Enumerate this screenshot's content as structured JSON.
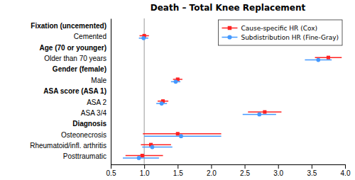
{
  "chart_data": {
    "type": "forest",
    "title": "Death – Total Knee Replacement",
    "orientation": "horizontal",
    "categories": [
      "Fixation (uncemented)",
      "Cemented",
      "Age (70 or younger)",
      "Older than 70 years",
      "Gender (female)",
      "Male",
      "ASA score (ASA 1)",
      "ASA 2",
      "ASA 3/4",
      "Diagnosis",
      "Osteonecrosis",
      "Rheumatoid/infl. arthritis",
      "Posttraumatic"
    ],
    "series": [
      {
        "name": "Cause-specific HR (Cox)",
        "color": "#FF2222",
        "marker": "square",
        "line_style": "solid",
        "values": [
          null,
          1.0,
          null,
          3.75,
          null,
          1.5,
          null,
          1.28,
          2.8,
          null,
          1.5,
          1.1,
          0.97
        ],
        "lo": [
          null,
          0.93,
          null,
          3.55,
          null,
          1.43,
          null,
          1.2,
          2.55,
          null,
          0.98,
          0.95,
          0.72
        ],
        "hi": [
          null,
          1.07,
          null,
          3.95,
          null,
          1.57,
          null,
          1.36,
          3.05,
          null,
          2.15,
          1.4,
          1.28
        ]
      },
      {
        "name": "Subdistribution HR (Fine-Gray)",
        "color": "#4499FF",
        "marker": "circle",
        "line_style": "solid",
        "values": [
          null,
          0.99,
          null,
          3.6,
          null,
          1.47,
          null,
          1.26,
          2.72,
          null,
          1.55,
          1.12,
          0.92
        ],
        "lo": [
          null,
          0.92,
          null,
          3.4,
          null,
          1.4,
          null,
          1.18,
          2.47,
          null,
          1.0,
          0.97,
          0.68
        ],
        "hi": [
          null,
          1.06,
          null,
          3.8,
          null,
          1.54,
          null,
          1.34,
          2.97,
          null,
          2.15,
          1.42,
          1.22
        ]
      }
    ],
    "xlim": [
      0.5,
      4.0
    ],
    "xticks": [
      0.5,
      {
        "value": 1.0,
        "label": "1.0"
      },
      1.5,
      {
        "value": 2.0,
        "label": "2.0"
      },
      2.5,
      {
        "value": 3.0,
        "label": "3.0"
      },
      3.5,
      {
        "value": 4.0,
        "label": "4.0"
      }
    ],
    "reference_line": 1.0,
    "legend": "upper right",
    "grid": false
  }
}
